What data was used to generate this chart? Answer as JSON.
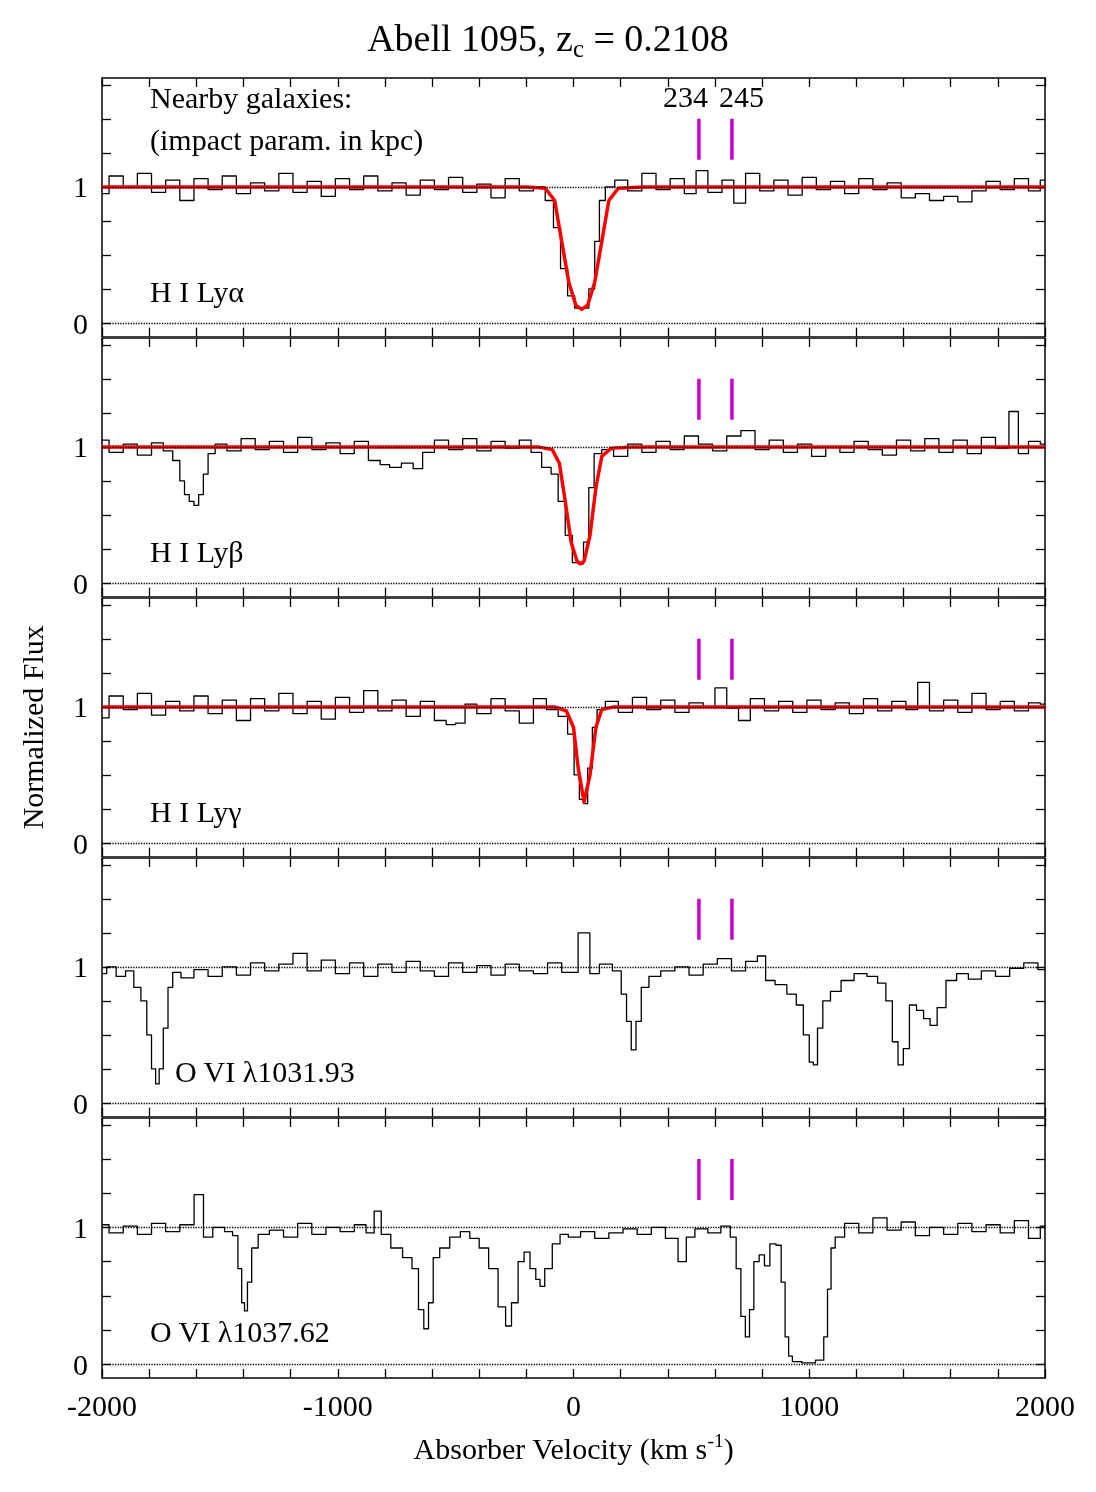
{
  "chart_data": [
    {
      "type": "step",
      "title": "Abell 1095, z$_{c}$ = 0.2108",
      "xlim": [
        -2000,
        2000
      ],
      "ylim": [
        -0.1,
        1.8
      ],
      "xticks": [
        {
          "value": -2000,
          "label": null
        },
        {
          "value": -1800,
          "label": null
        },
        {
          "value": -1600,
          "label": null
        },
        {
          "value": -1400,
          "label": null
        },
        {
          "value": -1200,
          "label": null
        },
        {
          "value": -1000,
          "label": null
        },
        {
          "value": -800,
          "label": null
        },
        {
          "value": -600,
          "label": null
        },
        {
          "value": -400,
          "label": null
        },
        {
          "value": -200,
          "label": null
        },
        {
          "value": 0,
          "label": null
        },
        {
          "value": 200,
          "label": null
        },
        {
          "value": 400,
          "label": null
        },
        {
          "value": 600,
          "label": null
        },
        {
          "value": 800,
          "label": null
        },
        {
          "value": 1000,
          "label": null
        },
        {
          "value": 1200,
          "label": null
        },
        {
          "value": 1400,
          "label": null
        },
        {
          "value": 1600,
          "label": null
        },
        {
          "value": 1800,
          "label": null
        },
        {
          "value": 2000,
          "label": null
        }
      ],
      "yticks": [
        {
          "value": 0,
          "label": "0"
        },
        {
          "value": 0.25,
          "label": null
        },
        {
          "value": 0.5,
          "label": null
        },
        {
          "value": 0.75,
          "label": null
        },
        {
          "value": 1,
          "label": "1"
        },
        {
          "value": 1.25,
          "label": null
        },
        {
          "value": 1.5,
          "label": null
        },
        {
          "value": 1.75,
          "label": null
        }
      ],
      "tick_labels": "y",
      "ref_lines": [
        {
          "axis": "y",
          "value": 0,
          "color": "#000000",
          "line_style": "dotted"
        },
        {
          "axis": "y",
          "value": 1,
          "color": "#000000",
          "line_style": "dotted"
        }
      ],
      "annotations": [
        "H I Lyα",
        "Nearby galaxies:",
        "(impact param. in kpc)",
        {
          "text": "234",
          "x": 532,
          "y": 1.5
        },
        {
          "text": "245",
          "x": 672,
          "y": 1.5
        }
      ],
      "series": [
        {
          "color": "#000000",
          "x": [
            -2000,
            -1940,
            -1880,
            -1820,
            -1760,
            -1700,
            -1640,
            -1580,
            -1520,
            -1460,
            -1400,
            -1340,
            -1280,
            -1220,
            -1160,
            -1100,
            -1040,
            -980,
            -920,
            -860,
            -800,
            -740,
            -680,
            -620,
            -560,
            -500,
            -440,
            -380,
            -320,
            -260,
            -200,
            -140,
            -100,
            -70,
            -40,
            -10,
            20,
            50,
            80,
            100,
            120,
            150,
            200,
            260,
            320,
            380,
            440,
            500,
            540,
            600,
            660,
            700,
            760,
            820,
            880,
            940,
            1000,
            1060,
            1120,
            1180,
            1240,
            1300,
            1360,
            1420,
            1480,
            1540,
            1600,
            1660,
            1720,
            1780,
            1840,
            1900,
            1960,
            2000
          ],
          "values": [
            0.95,
            1.08,
            1.0,
            1.1,
            0.96,
            1.05,
            0.9,
            1.06,
            0.98,
            1.08,
            0.95,
            1.03,
            0.97,
            1.1,
            0.96,
            1.04,
            0.93,
            1.06,
            0.98,
            1.08,
            0.97,
            1.03,
            0.94,
            1.05,
            0.98,
            1.07,
            0.96,
            1.02,
            0.92,
            1.06,
            0.97,
            1.0,
            0.9,
            0.7,
            0.4,
            0.2,
            0.11,
            0.11,
            0.25,
            0.6,
            0.9,
            1.0,
            1.05,
            0.97,
            1.1,
            0.98,
            1.06,
            0.95,
            1.12,
            0.96,
            1.05,
            0.88,
            1.1,
            0.97,
            1.05,
            0.94,
            1.07,
            0.98,
            1.04,
            0.95,
            1.06,
            0.98,
            1.03,
            0.92,
            0.95,
            0.9,
            0.93,
            0.89,
            0.97,
            1.04,
            0.98,
            1.06,
            0.97,
            1.05
          ]
        },
        {
          "type": "line",
          "color": "#ff0000",
          "x": [
            -2000,
            -200,
            -120,
            -80,
            -50,
            -20,
            10,
            35,
            60,
            90,
            120,
            150,
            190,
            300,
            2000
          ],
          "values": [
            1,
            1,
            0.99,
            0.9,
            0.6,
            0.3,
            0.13,
            0.1,
            0.13,
            0.3,
            0.6,
            0.9,
            0.99,
            1,
            1
          ]
        },
        {
          "type": "line",
          "color": "#cc00cc",
          "x": [
            532,
            532
          ],
          "values": [
            1.2,
            1.5
          ]
        },
        {
          "type": "line",
          "color": "#cc00cc",
          "x": [
            672,
            672
          ],
          "values": [
            1.2,
            1.5
          ]
        }
      ]
    },
    {
      "type": "step",
      "xlim": [
        -2000,
        2000
      ],
      "ylim": [
        -0.1,
        1.8
      ],
      "xticks": [
        {
          "value": -2000,
          "label": null
        },
        {
          "value": -1800,
          "label": null
        },
        {
          "value": -1600,
          "label": null
        },
        {
          "value": -1400,
          "label": null
        },
        {
          "value": -1200,
          "label": null
        },
        {
          "value": -1000,
          "label": null
        },
        {
          "value": -800,
          "label": null
        },
        {
          "value": -600,
          "label": null
        },
        {
          "value": -400,
          "label": null
        },
        {
          "value": -200,
          "label": null
        },
        {
          "value": 0,
          "label": null
        },
        {
          "value": 200,
          "label": null
        },
        {
          "value": 400,
          "label": null
        },
        {
          "value": 600,
          "label": null
        },
        {
          "value": 800,
          "label": null
        },
        {
          "value": 1000,
          "label": null
        },
        {
          "value": 1200,
          "label": null
        },
        {
          "value": 1400,
          "label": null
        },
        {
          "value": 1600,
          "label": null
        },
        {
          "value": 1800,
          "label": null
        },
        {
          "value": 2000,
          "label": null
        }
      ],
      "yticks": [
        {
          "value": 0,
          "label": "0"
        },
        {
          "value": 0.25,
          "label": null
        },
        {
          "value": 0.5,
          "label": null
        },
        {
          "value": 0.75,
          "label": null
        },
        {
          "value": 1,
          "label": "1"
        },
        {
          "value": 1.25,
          "label": null
        },
        {
          "value": 1.5,
          "label": null
        },
        {
          "value": 1.75,
          "label": null
        }
      ],
      "tick_labels": "y",
      "ref_lines": [
        {
          "axis": "y",
          "value": 0,
          "color": "#000000",
          "line_style": "dotted"
        },
        {
          "axis": "y",
          "value": 1,
          "color": "#000000",
          "line_style": "dotted"
        }
      ],
      "annotations": [
        "H I Lyβ"
      ],
      "series": [
        {
          "color": "#000000",
          "x": [
            -2000,
            -1940,
            -1880,
            -1820,
            -1760,
            -1720,
            -1680,
            -1660,
            -1640,
            -1620,
            -1600,
            -1580,
            -1560,
            -1540,
            -1500,
            -1440,
            -1380,
            -1320,
            -1260,
            -1200,
            -1140,
            -1080,
            -1020,
            -960,
            -900,
            -840,
            -800,
            -760,
            -700,
            -660,
            -620,
            -560,
            -500,
            -440,
            -380,
            -320,
            -260,
            -200,
            -160,
            -110,
            -80,
            -50,
            -20,
            10,
            30,
            55,
            75,
            100,
            140,
            200,
            260,
            320,
            380,
            440,
            500,
            560,
            620,
            680,
            740,
            800,
            860,
            920,
            980,
            1040,
            1100,
            1160,
            1220,
            1280,
            1340,
            1400,
            1460,
            1520,
            1580,
            1640,
            1700,
            1760,
            1820,
            1874,
            1900,
            1960,
            2000
          ],
          "values": [
            1.05,
            0.96,
            1.02,
            0.94,
            1.03,
            0.97,
            0.9,
            0.75,
            0.65,
            0.6,
            0.57,
            0.65,
            0.8,
            0.95,
            1.02,
            0.97,
            1.06,
            0.98,
            1.04,
            0.96,
            1.07,
            0.98,
            1.03,
            0.95,
            1.04,
            0.9,
            0.87,
            0.85,
            0.88,
            0.84,
            0.96,
            1.05,
            0.98,
            1.06,
            0.97,
            1.04,
            0.99,
            1.05,
            0.96,
            0.85,
            0.8,
            0.6,
            0.35,
            0.15,
            0.14,
            0.3,
            0.7,
            0.95,
            0.98,
            0.93,
            1.02,
            0.96,
            1.04,
            0.98,
            1.08,
            1.02,
            0.97,
            1.08,
            1.12,
            0.98,
            1.05,
            0.96,
            1.02,
            0.93,
            1.0,
            0.96,
            1.04,
            0.98,
            0.94,
            1.05,
            0.97,
            1.06,
            0.96,
            1.05,
            0.95,
            1.07,
            0.99,
            1.26,
            0.95,
            1.04,
            1.02
          ]
        },
        {
          "type": "line",
          "color": "#ff0000",
          "x": [
            -2000,
            -150,
            -90,
            -60,
            -35,
            -10,
            15,
            30,
            45,
            70,
            95,
            120,
            160,
            250,
            2000
          ],
          "values": [
            1,
            1,
            0.98,
            0.88,
            0.6,
            0.3,
            0.16,
            0.14,
            0.16,
            0.35,
            0.7,
            0.93,
            0.99,
            1,
            1
          ]
        },
        {
          "type": "line",
          "color": "#cc00cc",
          "x": [
            532,
            532
          ],
          "values": [
            1.2,
            1.5
          ]
        },
        {
          "type": "line",
          "color": "#cc00cc",
          "x": [
            672,
            672
          ],
          "values": [
            1.2,
            1.5
          ]
        }
      ]
    },
    {
      "type": "step",
      "ylabel": "Normalized Flux",
      "xlim": [
        -2000,
        2000
      ],
      "ylim": [
        -0.1,
        1.8
      ],
      "xticks": [
        {
          "value": -2000,
          "label": null
        },
        {
          "value": -1800,
          "label": null
        },
        {
          "value": -1600,
          "label": null
        },
        {
          "value": -1400,
          "label": null
        },
        {
          "value": -1200,
          "label": null
        },
        {
          "value": -1000,
          "label": null
        },
        {
          "value": -800,
          "label": null
        },
        {
          "value": -600,
          "label": null
        },
        {
          "value": -400,
          "label": null
        },
        {
          "value": -200,
          "label": null
        },
        {
          "value": 0,
          "label": null
        },
        {
          "value": 200,
          "label": null
        },
        {
          "value": 400,
          "label": null
        },
        {
          "value": 600,
          "label": null
        },
        {
          "value": 800,
          "label": null
        },
        {
          "value": 1000,
          "label": null
        },
        {
          "value": 1200,
          "label": null
        },
        {
          "value": 1400,
          "label": null
        },
        {
          "value": 1600,
          "label": null
        },
        {
          "value": 1800,
          "label": null
        },
        {
          "value": 2000,
          "label": null
        }
      ],
      "yticks": [
        {
          "value": 0,
          "label": "0"
        },
        {
          "value": 0.25,
          "label": null
        },
        {
          "value": 0.5,
          "label": null
        },
        {
          "value": 0.75,
          "label": null
        },
        {
          "value": 1,
          "label": "1"
        },
        {
          "value": 1.25,
          "label": null
        },
        {
          "value": 1.5,
          "label": null
        },
        {
          "value": 1.75,
          "label": null
        }
      ],
      "tick_labels": "y",
      "ref_lines": [
        {
          "axis": "y",
          "value": 0,
          "color": "#000000",
          "line_style": "dotted"
        },
        {
          "axis": "y",
          "value": 1,
          "color": "#000000",
          "line_style": "dotted"
        }
      ],
      "annotations": [
        "H I Lyγ"
      ],
      "series": [
        {
          "color": "#000000",
          "x": [
            -2000,
            -1940,
            -1880,
            -1820,
            -1760,
            -1700,
            -1640,
            -1580,
            -1520,
            -1460,
            -1400,
            -1340,
            -1280,
            -1220,
            -1160,
            -1100,
            -1040,
            -980,
            -920,
            -860,
            -800,
            -740,
            -680,
            -620,
            -560,
            -520,
            -480,
            -440,
            -380,
            -320,
            -260,
            -200,
            -140,
            -90,
            -40,
            -10,
            15,
            35,
            50,
            70,
            90,
            110,
            160,
            220,
            280,
            340,
            400,
            460,
            520,
            580,
            620,
            680,
            720,
            780,
            840,
            900,
            960,
            1020,
            1080,
            1140,
            1200,
            1260,
            1320,
            1380,
            1440,
            1480,
            1540,
            1600,
            1660,
            1720,
            1780,
            1840,
            1900,
            1960,
            2000
          ],
          "values": [
            0.92,
            1.08,
            0.98,
            1.1,
            0.94,
            1.04,
            0.97,
            1.08,
            0.95,
            1.05,
            0.9,
            1.06,
            0.97,
            1.1,
            0.95,
            1.04,
            0.91,
            1.07,
            0.96,
            1.12,
            0.97,
            1.05,
            0.93,
            1.04,
            0.9,
            0.87,
            0.88,
            1.02,
            0.95,
            1.06,
            0.97,
            0.88,
            1.06,
            0.98,
            0.93,
            0.8,
            0.5,
            0.32,
            0.29,
            0.55,
            0.85,
            0.98,
            1.04,
            0.96,
            1.07,
            0.98,
            1.05,
            0.96,
            1.03,
            1.0,
            1.14,
            0.99,
            0.9,
            1.06,
            0.97,
            1.04,
            0.96,
            1.05,
            0.98,
            1.03,
            0.95,
            1.06,
            0.97,
            1.04,
            0.98,
            1.18,
            0.97,
            1.05,
            0.96,
            1.1,
            0.98,
            1.04,
            0.97,
            1.03,
            1.02
          ]
        },
        {
          "type": "line",
          "color": "#ff0000",
          "x": [
            -2000,
            -80,
            -30,
            0,
            20,
            45,
            70,
            95,
            120,
            170,
            2000
          ],
          "values": [
            1,
            1,
            0.97,
            0.85,
            0.55,
            0.3,
            0.5,
            0.85,
            0.98,
            1,
            1
          ]
        },
        {
          "type": "line",
          "color": "#cc00cc",
          "x": [
            532,
            532
          ],
          "values": [
            1.2,
            1.5
          ]
        },
        {
          "type": "line",
          "color": "#cc00cc",
          "x": [
            672,
            672
          ],
          "values": [
            1.2,
            1.5
          ]
        }
      ]
    },
    {
      "type": "step",
      "xlim": [
        -2000,
        2000
      ],
      "ylim": [
        -0.1,
        1.8
      ],
      "xticks": [
        {
          "value": -2000,
          "label": null
        },
        {
          "value": -1800,
          "label": null
        },
        {
          "value": -1600,
          "label": null
        },
        {
          "value": -1400,
          "label": null
        },
        {
          "value": -1200,
          "label": null
        },
        {
          "value": -1000,
          "label": null
        },
        {
          "value": -800,
          "label": null
        },
        {
          "value": -600,
          "label": null
        },
        {
          "value": -400,
          "label": null
        },
        {
          "value": -200,
          "label": null
        },
        {
          "value": 0,
          "label": null
        },
        {
          "value": 200,
          "label": null
        },
        {
          "value": 400,
          "label": null
        },
        {
          "value": 600,
          "label": null
        },
        {
          "value": 800,
          "label": null
        },
        {
          "value": 1000,
          "label": null
        },
        {
          "value": 1200,
          "label": null
        },
        {
          "value": 1400,
          "label": null
        },
        {
          "value": 1600,
          "label": null
        },
        {
          "value": 1800,
          "label": null
        },
        {
          "value": 2000,
          "label": null
        }
      ],
      "yticks": [
        {
          "value": 0,
          "label": "0"
        },
        {
          "value": 0.25,
          "label": null
        },
        {
          "value": 0.5,
          "label": null
        },
        {
          "value": 0.75,
          "label": null
        },
        {
          "value": 1,
          "label": "1"
        },
        {
          "value": 1.25,
          "label": null
        },
        {
          "value": 1.5,
          "label": null
        },
        {
          "value": 1.75,
          "label": null
        }
      ],
      "tick_labels": "y",
      "ref_lines": [
        {
          "axis": "y",
          "value": 0,
          "color": "#000000",
          "line_style": "dotted"
        },
        {
          "axis": "y",
          "value": 1,
          "color": "#000000",
          "line_style": "dotted"
        }
      ],
      "annotations": [
        "O VI λ1031.93"
      ],
      "series": [
        {
          "color": "#000000",
          "x": [
            -2000,
            -1960,
            -1920,
            -1880,
            -1850,
            -1820,
            -1800,
            -1780,
            -1765,
            -1750,
            -1730,
            -1710,
            -1690,
            -1640,
            -1580,
            -1520,
            -1460,
            -1400,
            -1340,
            -1280,
            -1220,
            -1160,
            -1100,
            -1040,
            -980,
            -920,
            -860,
            -800,
            -740,
            -680,
            -620,
            -560,
            -500,
            -440,
            -380,
            -320,
            -260,
            -200,
            -140,
            -80,
            -20,
            59,
            80,
            140,
            190,
            215,
            235,
            255,
            275,
            300,
            340,
            400,
            460,
            520,
            580,
            640,
            700,
            760,
            800,
            830,
            880,
            930,
            960,
            990,
            1010,
            1025,
            1045,
            1070,
            1110,
            1160,
            1220,
            1270,
            1310,
            1340,
            1365,
            1388,
            1410,
            1440,
            1470,
            1500,
            1525,
            1560,
            1600,
            1650,
            1700,
            1760,
            1820,
            1880,
            1940,
            2000
          ],
          "values": [
            0.95,
            1.0,
            0.93,
            0.97,
            0.85,
            0.75,
            0.5,
            0.25,
            0.14,
            0.25,
            0.55,
            0.85,
            0.96,
            0.92,
            0.98,
            0.93,
            1.0,
            0.94,
            1.03,
            0.97,
            1.02,
            1.1,
            0.97,
            1.05,
            0.95,
            1.03,
            0.93,
            1.02,
            0.96,
            1.04,
            0.97,
            0.93,
            1.03,
            0.96,
            1.01,
            0.94,
            1.02,
            0.97,
            0.95,
            1.03,
            0.96,
            1.25,
            0.95,
            1.02,
            0.97,
            0.8,
            0.6,
            0.39,
            0.6,
            0.85,
            0.93,
            0.97,
            1.0,
            0.94,
            1.02,
            1.06,
            0.97,
            1.04,
            1.08,
            0.9,
            0.87,
            0.8,
            0.72,
            0.5,
            0.3,
            0.28,
            0.55,
            0.75,
            0.82,
            0.9,
            0.95,
            0.93,
            0.88,
            0.75,
            0.45,
            0.28,
            0.4,
            0.72,
            0.68,
            0.62,
            0.57,
            0.7,
            0.9,
            0.95,
            0.91,
            0.97,
            0.93,
            0.99,
            1.03,
            0.98
          ]
        },
        {
          "type": "line",
          "color": "#cc00cc",
          "x": [
            532,
            532
          ],
          "values": [
            1.2,
            1.5
          ]
        },
        {
          "type": "line",
          "color": "#cc00cc",
          "x": [
            672,
            672
          ],
          "values": [
            1.2,
            1.5
          ]
        }
      ]
    },
    {
      "type": "step",
      "xlabel": "Absorber Velocity (km s$^{-1}$)",
      "xlim": [
        -2000,
        2000
      ],
      "ylim": [
        -0.1,
        1.8
      ],
      "xticks": [
        {
          "value": -2000,
          "label": "-2000"
        },
        {
          "value": -1800,
          "label": null
        },
        {
          "value": -1600,
          "label": null
        },
        {
          "value": -1400,
          "label": null
        },
        {
          "value": -1200,
          "label": null
        },
        {
          "value": -1000,
          "label": "-1000"
        },
        {
          "value": -800,
          "label": null
        },
        {
          "value": -600,
          "label": null
        },
        {
          "value": -400,
          "label": null
        },
        {
          "value": -200,
          "label": null
        },
        {
          "value": 0,
          "label": "0"
        },
        {
          "value": 200,
          "label": null
        },
        {
          "value": 400,
          "label": null
        },
        {
          "value": 600,
          "label": null
        },
        {
          "value": 800,
          "label": null
        },
        {
          "value": 1000,
          "label": "1000"
        },
        {
          "value": 1200,
          "label": null
        },
        {
          "value": 1400,
          "label": null
        },
        {
          "value": 1600,
          "label": null
        },
        {
          "value": 1800,
          "label": null
        },
        {
          "value": 2000,
          "label": "2000"
        }
      ],
      "yticks": [
        {
          "value": 0,
          "label": "0"
        },
        {
          "value": 0.25,
          "label": null
        },
        {
          "value": 0.5,
          "label": null
        },
        {
          "value": 0.75,
          "label": null
        },
        {
          "value": 1,
          "label": "1"
        },
        {
          "value": 1.25,
          "label": null
        },
        {
          "value": 1.5,
          "label": null
        },
        {
          "value": 1.75,
          "label": null
        }
      ],
      "ref_lines": [
        {
          "axis": "y",
          "value": 0,
          "color": "#000000",
          "line_style": "dotted"
        },
        {
          "axis": "y",
          "value": 1,
          "color": "#000000",
          "line_style": "dotted"
        }
      ],
      "annotations": [
        "O VI λ1037.62"
      ],
      "series": [
        {
          "color": "#000000",
          "x": [
            -2000,
            -1940,
            -1880,
            -1820,
            -1760,
            -1700,
            -1640,
            -1579,
            -1560,
            -1500,
            -1460,
            -1432,
            -1415,
            -1400,
            -1391,
            -1375,
            -1355,
            -1320,
            -1260,
            -1200,
            -1140,
            -1080,
            -1020,
            -960,
            -900,
            -860,
            -831,
            -800,
            -750,
            -700,
            -670,
            -645,
            -625,
            -605,
            -585,
            -550,
            -500,
            -460,
            -420,
            -380,
            -340,
            -300,
            -276,
            -250,
            -220,
            -199,
            -170,
            -150,
            -134,
            -110,
            -70,
            -44,
            0,
            60,
            120,
            180,
            240,
            300,
            360,
            420,
            467,
            490,
            540,
            600,
            650,
            680,
            700,
            720,
            738,
            755,
            775,
            800,
            820,
            846,
            872,
            890,
            905,
            920,
            937,
            1000,
            1053,
            1070,
            1085,
            1100,
            1120,
            1180,
            1240,
            1300,
            1360,
            1420,
            1480,
            1540,
            1600,
            1660,
            1720,
            1780,
            1840,
            1900,
            1960,
            2000
          ],
          "values": [
            1.02,
            0.96,
            1.01,
            0.95,
            1.03,
            0.97,
            1.02,
            1.24,
            0.93,
            1.0,
            0.97,
            0.94,
            0.7,
            0.45,
            0.39,
            0.6,
            0.85,
            0.95,
            0.98,
            0.93,
            1.03,
            0.95,
            1.0,
            0.97,
            1.02,
            0.96,
            1.12,
            0.95,
            0.85,
            0.78,
            0.7,
            0.4,
            0.26,
            0.45,
            0.78,
            0.85,
            0.93,
            0.97,
            0.92,
            0.85,
            0.7,
            0.42,
            0.28,
            0.45,
            0.75,
            0.82,
            0.7,
            0.62,
            0.57,
            0.7,
            0.88,
            0.95,
            0.93,
            0.97,
            0.92,
            0.96,
            0.99,
            0.95,
            1.0,
            0.92,
            0.75,
            0.93,
            0.99,
            0.96,
            1.01,
            0.93,
            0.7,
            0.35,
            0.2,
            0.4,
            0.75,
            0.8,
            0.72,
            0.88,
            0.87,
            0.6,
            0.2,
            0.06,
            0.02,
            0.01,
            0.03,
            0.2,
            0.55,
            0.85,
            0.93,
            1.03,
            0.96,
            1.07,
            0.98,
            1.04,
            0.94,
            1.0,
            0.95,
            1.03,
            0.97,
            1.02,
            0.96,
            1.05,
            0.92,
            1.01
          ]
        },
        {
          "type": "line",
          "color": "#cc00cc",
          "x": [
            532,
            532
          ],
          "values": [
            1.2,
            1.5
          ]
        },
        {
          "type": "line",
          "color": "#cc00cc",
          "x": [
            672,
            672
          ],
          "values": [
            1.2,
            1.5
          ]
        }
      ]
    }
  ]
}
